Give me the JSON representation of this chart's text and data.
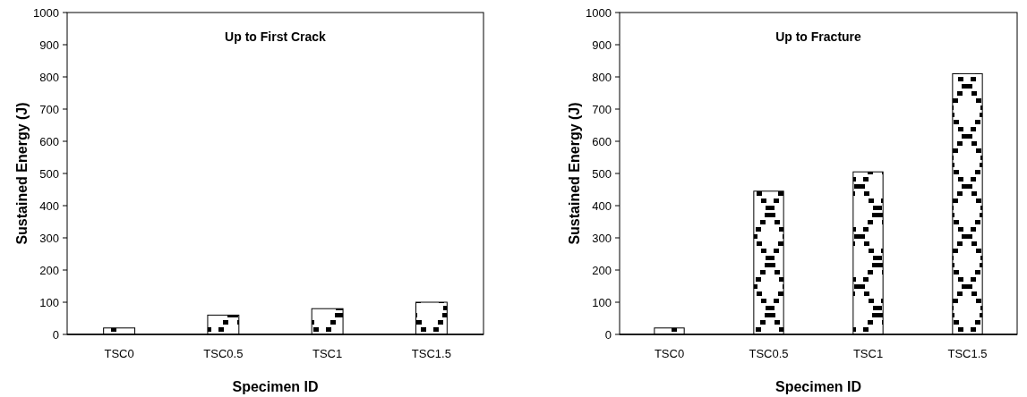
{
  "chart_data": [
    {
      "type": "bar",
      "title": "Up to First Crack",
      "xlabel": "Specimen ID",
      "ylabel": "Sustained Energy (J)",
      "categories": [
        "TSC0",
        "TSC0.5",
        "TSC1",
        "TSC1.5"
      ],
      "values": [
        20,
        60,
        80,
        100
      ],
      "color": "#000000",
      "ylim": [
        0,
        1000
      ],
      "yticks": [
        0,
        100,
        200,
        300,
        400,
        500,
        600,
        700,
        800,
        900,
        1000
      ]
    },
    {
      "type": "bar",
      "title": "Up to Fracture",
      "xlabel": "Specimen ID",
      "ylabel": "Sustained Energy (J)",
      "categories": [
        "TSC0",
        "TSC0.5",
        "TSC1",
        "TSC1.5"
      ],
      "values": [
        20,
        445,
        505,
        810
      ],
      "color": "#000000",
      "ylim": [
        0,
        1000
      ],
      "yticks": [
        0,
        100,
        200,
        300,
        400,
        500,
        600,
        700,
        800,
        900,
        1000
      ]
    }
  ]
}
